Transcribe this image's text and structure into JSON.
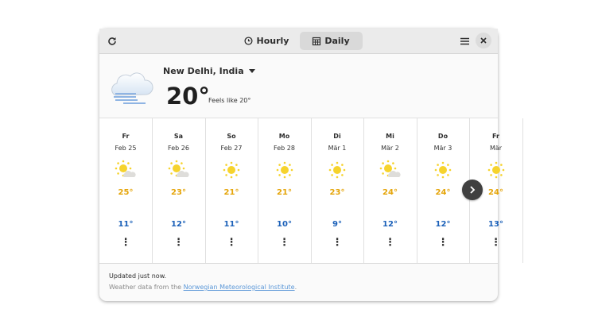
{
  "header": {
    "tabs": [
      {
        "label": "Hourly",
        "icon": "clock-icon"
      },
      {
        "label": "Daily",
        "icon": "calendar-icon",
        "active": true
      }
    ],
    "refresh_icon": "refresh-icon",
    "menu_icon": "hamburger-icon",
    "close_icon": "close-icon"
  },
  "current": {
    "location": "New Delhi, India",
    "temperature": "20°",
    "feels_like": "Feels like 20°",
    "condition_icon": "fog-cloud-icon"
  },
  "forecast": [
    {
      "day": "Fr",
      "date": "Feb 25",
      "icon": "partly-cloudy",
      "high": "25°",
      "low": "11°"
    },
    {
      "day": "Sa",
      "date": "Feb 26",
      "icon": "partly-cloudy",
      "high": "23°",
      "low": "12°"
    },
    {
      "day": "So",
      "date": "Feb 27",
      "icon": "sunny",
      "high": "21°",
      "low": "11°"
    },
    {
      "day": "Mo",
      "date": "Feb 28",
      "icon": "sunny",
      "high": "21°",
      "low": "10°"
    },
    {
      "day": "Di",
      "date": "Mär  1",
      "icon": "sunny",
      "high": "23°",
      "low": "9°"
    },
    {
      "day": "Mi",
      "date": "Mär  2",
      "icon": "partly-cloudy",
      "high": "24°",
      "low": "12°"
    },
    {
      "day": "Do",
      "date": "Mär  3",
      "icon": "sunny",
      "high": "24°",
      "low": "12°"
    },
    {
      "day": "Fr",
      "date": "Mär",
      "icon": "sunny",
      "high": "24°",
      "low": "13°"
    }
  ],
  "footer": {
    "updated": "Updated just now.",
    "source_prefix": "Weather data from the ",
    "source_link": "Norwegian Meteorological Institute",
    "source_suffix": "."
  },
  "colors": {
    "high": "#e5a50a",
    "low": "#1c61b9",
    "sun": "#f6d32d"
  }
}
